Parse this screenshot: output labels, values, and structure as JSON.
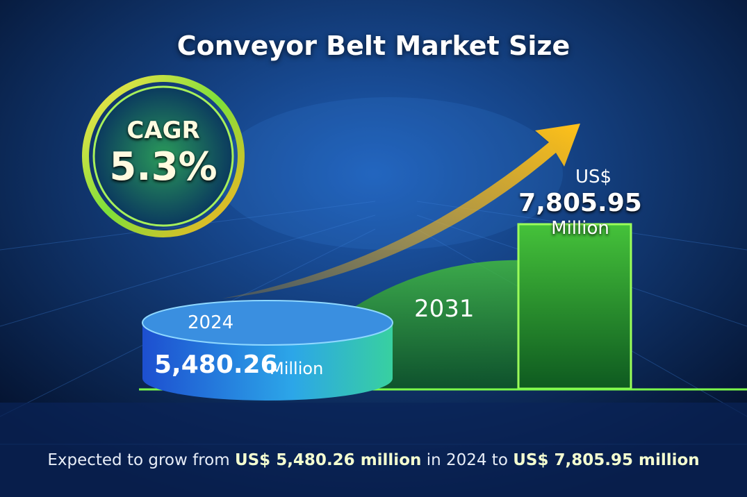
{
  "title": "Conveyor Belt Market Size",
  "cagr": {
    "label": "CAGR",
    "value": "5.3%"
  },
  "start": {
    "year": "2024",
    "value": "5,480.26",
    "unit": "Million"
  },
  "end": {
    "year": "2031",
    "currency": "US$",
    "value": "7,805.95",
    "unit": "Million"
  },
  "footer": {
    "lead": "Expected to grow from",
    "from": "US$ 5,480.26 million",
    "mid": "in 2024 to",
    "to": "US$ 7,805.95 million"
  }
}
